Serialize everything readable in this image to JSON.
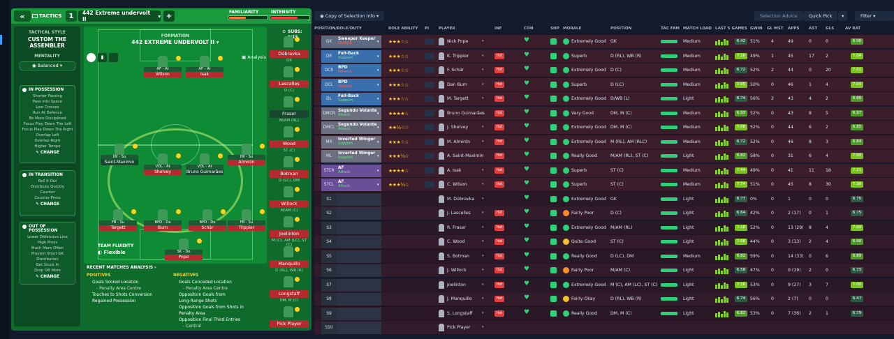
{
  "tactic_header": {
    "back_icon": "double-chevron-left-icon",
    "tactics_label": "TACTICS",
    "slot_number": "1",
    "tactic_name": "442 Extreme undervolt II",
    "add_icon": "plus-icon",
    "familiarity_label": "FAMILIARITY",
    "intensity_label": "INTENSITY",
    "familiarity_value": 0.45,
    "intensity_value": 0.7
  },
  "tactical_style": {
    "label": "TACTICAL STYLE",
    "name_line1": "CUSTOM THE",
    "name_line2": "ASSEMBLER",
    "mentality_label": "MENTALITY",
    "mentality_value": "Balanced",
    "in_possession": {
      "title": "IN POSSESSION",
      "items": [
        "Shorter Passing",
        "Pass Into Space",
        "Low Crosses",
        "Run At Defence",
        "Be More Disciplined",
        "Focus Play Down The Left",
        "Focus Play Down The Right",
        "Overlap Left",
        "Overlap Right",
        "Higher Tempo"
      ],
      "change": "CHANGE"
    },
    "in_transition": {
      "title": "IN TRANSITION",
      "items": [
        "Roll It Out",
        "Distribute Quickly",
        "Counter",
        "Counter-Press"
      ],
      "change": "CHANGE"
    },
    "out_of_possession": {
      "title": "OUT OF POSSESSION",
      "items": [
        "Lower Defensive Line",
        "High Press",
        "Much More Often",
        "Prevent Short GK",
        "Distribution",
        "Get Stuck In",
        "Drop Off More"
      ],
      "change": "CHANGE"
    }
  },
  "formation": {
    "label": "FORMATION",
    "name": "442 EXTREME UNDERVOLT II",
    "analysis_button": "Analysis",
    "players": [
      {
        "id": "af-left",
        "role": "AF - At",
        "name": "Wilson"
      },
      {
        "id": "af-right",
        "role": "AF - At",
        "name": "Isak"
      },
      {
        "id": "iw-left",
        "role": "IW - Su",
        "name": "Saint-Maximin"
      },
      {
        "id": "vol-left",
        "role": "VOL - At",
        "name": "Shelvey"
      },
      {
        "id": "vol-right",
        "role": "VOL - At",
        "name": "Bruno Guimarães"
      },
      {
        "id": "iw-right",
        "role": "IW - Su",
        "name": "Almirón"
      },
      {
        "id": "fb-left",
        "role": "FB - Su",
        "name": "Targett"
      },
      {
        "id": "bpd-left",
        "role": "BPD - De",
        "name": "Burn"
      },
      {
        "id": "bpd-right",
        "role": "BPD - De",
        "name": "Schär"
      },
      {
        "id": "fb-right",
        "role": "FB - Su",
        "name": "Trippier"
      },
      {
        "id": "sk",
        "role": "SK - De",
        "name": "Pope"
      }
    ],
    "team_fluidity_label": "TEAM FLUIDITY",
    "team_fluidity_value": "Flexible"
  },
  "subs": {
    "label": "SUBS:",
    "count": "9/15",
    "items": [
      {
        "name": "Dúbravka",
        "pos": "GK"
      },
      {
        "name": "Lascelles",
        "pos": "D (C)"
      },
      {
        "name": "Fraser",
        "pos": "M/AM (RL)"
      },
      {
        "name": "Wood",
        "pos": "ST (C)"
      },
      {
        "name": "Botman",
        "pos": "D (LC), DM"
      },
      {
        "name": "Willock",
        "pos": "M/AM (C)"
      },
      {
        "name": "Joelinton",
        "pos": "M (C), AM (LC), ST (C)"
      },
      {
        "name": "Manquillo",
        "pos": "D (RL), WB (R)"
      },
      {
        "name": "Longstaff",
        "pos": "DM, M (C)"
      },
      {
        "name": "Pick Player",
        "pos": ""
      }
    ]
  },
  "analysis": {
    "title": "RECENT MATCHES ANALYSIS",
    "positives_label": "POSITIVES",
    "positives": [
      "Goals Scored Location",
      "- Penalty Area Centre",
      "Touches to Shots Conversion",
      "Regained Possession"
    ],
    "negatives_label": "NEGATIVES",
    "negatives": [
      "Goals Conceded Location",
      "- Penalty Area Centre",
      "Opposition Goals from",
      "Long-Range Shots",
      "Opposition Goals from Shots in",
      "Penalty Area",
      "Opposition Final Third Entries",
      "- Central"
    ]
  },
  "toolbar": {
    "copy_selection": "Copy of Selection Info",
    "selection_advice": "Selection Advice",
    "quick_pick": "Quick Pick",
    "filter": "Filter"
  },
  "columns": [
    "POSITION/ROLE/DUTY",
    "ROLE ABILITY",
    "PI",
    "PLAYER",
    "INF",
    "CON",
    "SHP",
    "MORALE",
    "POSITION",
    "TAC FAM",
    "MATCH LOAD",
    "LAST 5 GAMES",
    "GWIN",
    "GL MST",
    "APPS",
    "AST",
    "GLS",
    "AV RAT"
  ],
  "rows": [
    {
      "pos": "GK",
      "role": "Sweeper Keeper",
      "duty": "Defend",
      "stars": "★★★☆☆",
      "player": "Nick Pope",
      "inf": "",
      "morale": "Extremely Good",
      "position": "GK",
      "load": "Medium",
      "rating": "6.42",
      "gwin": "51%",
      "glmst": "4",
      "apps": "49",
      "ast": "0",
      "gls": "0",
      "avrat": "6.90"
    },
    {
      "pos": "DR",
      "role": "Full-Back",
      "duty": "Support",
      "stars": "★★★☆☆",
      "player": "K. Trippier",
      "inf": "Hot",
      "morale": "Superb",
      "position": "D (RL), WB (R)",
      "load": "Medium",
      "rating": "7.10",
      "gwin": "49%",
      "glmst": "1",
      "apps": "45",
      "ast": "17",
      "gls": "2",
      "avrat": "7.04"
    },
    {
      "pos": "DCR",
      "role": "BPD",
      "duty": "Defend",
      "stars": "★★★☆☆",
      "player": "F. Schär",
      "inf": "Hot",
      "morale": "Extremely Good",
      "position": "D (C)",
      "load": "Medium",
      "rating": "6.72",
      "gwin": "52%",
      "glmst": "2",
      "apps": "44",
      "ast": "0",
      "gls": "20",
      "avrat": "7.01"
    },
    {
      "pos": "DCL",
      "role": "BPD",
      "duty": "Defend",
      "stars": "★★★☆☆",
      "player": "Dan Burn",
      "inf": "Hot",
      "morale": "Superb",
      "position": "D (LC)",
      "load": "Medium",
      "rating": "7.05",
      "gwin": "50%",
      "glmst": "0",
      "apps": "46",
      "ast": "1",
      "gls": "4",
      "avrat": "7.03"
    },
    {
      "pos": "DL",
      "role": "Full-Back",
      "duty": "Support",
      "stars": "★★★☆☆",
      "player": "M. Targett",
      "inf": "Hot",
      "morale": "Extremely Good",
      "position": "D/WB (L)",
      "load": "Light",
      "rating": "6.74",
      "gwin": "56%",
      "glmst": "2",
      "apps": "43",
      "ast": "4",
      "gls": "2",
      "avrat": "6.86"
    },
    {
      "pos": "DMCR",
      "role": "Segundo Volante",
      "duty": "Attack",
      "stars": "★★★★☆",
      "player": "Bruno Guimarães",
      "inf": "Hot",
      "morale": "Very Good",
      "position": "DM, M (C)",
      "load": "Medium",
      "rating": "6.93",
      "gwin": "52%",
      "glmst": "0",
      "apps": "43",
      "ast": "8",
      "gls": "5",
      "avrat": "6.97"
    },
    {
      "pos": "DMCL",
      "role": "Segundo Volante",
      "duty": "Attack",
      "stars": "★★½☆☆",
      "player": "J. Shelvey",
      "inf": "Hot",
      "morale": "Extremely Good",
      "position": "DM, M (C)",
      "load": "Medium",
      "rating": "7.08",
      "gwin": "52%",
      "glmst": "0",
      "apps": "44",
      "ast": "6",
      "gls": "2",
      "avrat": "6.85"
    },
    {
      "pos": "MR",
      "role": "Inverted Winger",
      "duty": "Support",
      "stars": "★★★☆☆",
      "player": "M. Almirón",
      "inf": "Hot",
      "morale": "Extremely Good",
      "position": "M (RL), AM (RLC)",
      "load": "Medium",
      "rating": "6.72",
      "gwin": "52%",
      "glmst": "0",
      "apps": "46",
      "ast": "8",
      "gls": "3",
      "avrat": "6.84"
    },
    {
      "pos": "ML",
      "role": "Inverted Winger",
      "duty": "Support",
      "stars": "★★★½☆",
      "player": "A. Saint-Maximin",
      "inf": "Hot",
      "morale": "Really Good",
      "position": "M/AM (RL), ST (C)",
      "load": "Light",
      "rating": "6.82",
      "gwin": "58%",
      "glmst": "0",
      "apps": "31",
      "ast": "6",
      "gls": "4",
      "avrat": "7.00"
    },
    {
      "pos": "STCR",
      "role": "AF",
      "duty": "Attack",
      "stars": "★★★★☆",
      "player": "A. Isak",
      "inf": "Hot",
      "morale": "Superb",
      "position": "ST (C)",
      "load": "Medium",
      "rating": "7.44",
      "gwin": "49%",
      "glmst": "0",
      "apps": "41",
      "ast": "11",
      "gls": "18",
      "avrat": "7.21"
    },
    {
      "pos": "STCL",
      "role": "AF",
      "duty": "Attack",
      "stars": "★★★½☆",
      "player": "C. Wilson",
      "inf": "Hot",
      "morale": "Superb",
      "position": "ST (C)",
      "load": "Medium",
      "rating": "7.74",
      "gwin": "51%",
      "glmst": "0",
      "apps": "45",
      "ast": "8",
      "gls": "30",
      "avrat": "7.36"
    },
    {
      "pos": "S1",
      "role": "",
      "duty": "",
      "stars": "",
      "player": "M. Dúbravka",
      "inf": "",
      "morale": "Extremely Good",
      "position": "GK",
      "load": "Light",
      "rating": "6.77",
      "gwin": "0%",
      "glmst": "0",
      "apps": "1",
      "ast": "0",
      "gls": "0",
      "avrat": "6.70"
    },
    {
      "pos": "S2",
      "role": "",
      "duty": "",
      "stars": "",
      "player": "J. Lascelles",
      "inf": "Hot",
      "morale": "Fairly Poor",
      "position": "D (C)",
      "load": "Light",
      "rating": "6.64",
      "gwin": "42%",
      "glmst": "0",
      "apps": "2 (17)",
      "ast": "0",
      "gls": "1",
      "avrat": "6.75"
    },
    {
      "pos": "S3",
      "role": "",
      "duty": "",
      "stars": "",
      "player": "R. Fraser",
      "inf": "Hot",
      "morale": "Extremely Good",
      "position": "M/AM (RL)",
      "load": "Light",
      "rating": "7.18",
      "gwin": "52%",
      "glmst": "0",
      "apps": "13 (29)",
      "ast": "8",
      "gls": "4",
      "avrat": "7.00"
    },
    {
      "pos": "S4",
      "role": "",
      "duty": "",
      "stars": "",
      "player": "C. Wood",
      "inf": "Hot",
      "morale": "Quite Good",
      "position": "ST (C)",
      "load": "Light",
      "rating": "7.08",
      "gwin": "44%",
      "glmst": "0",
      "apps": "3 (13)",
      "ast": "2",
      "gls": "4",
      "avrat": "6.90"
    },
    {
      "pos": "S5",
      "role": "",
      "duty": "",
      "stars": "",
      "player": "S. Botman",
      "inf": "Hot",
      "morale": "Really Good",
      "position": "D (LC), DM",
      "load": "Medium",
      "rating": "6.82",
      "gwin": "59%",
      "glmst": "0",
      "apps": "14 (33)",
      "ast": "0",
      "gls": "6",
      "avrat": "6.89"
    },
    {
      "pos": "S6",
      "role": "",
      "duty": "",
      "stars": "",
      "player": "J. Willock",
      "inf": "Hot",
      "morale": "Fairly Poor",
      "position": "M/AM (C)",
      "load": "Light",
      "rating": "6.58",
      "gwin": "47%",
      "glmst": "0",
      "apps": "0 (19)",
      "ast": "2",
      "gls": "0",
      "avrat": "6.73"
    },
    {
      "pos": "S7",
      "role": "",
      "duty": "",
      "stars": "",
      "player": "Joelinton",
      "inf": "Hot",
      "morale": "Extremely Good",
      "position": "M (C), AM (LC), ST (C)",
      "load": "Light",
      "rating": "7.16",
      "gwin": "53%",
      "glmst": "0",
      "apps": "9 (27)",
      "ast": "3",
      "gls": "7",
      "avrat": "7.00"
    },
    {
      "pos": "S8",
      "role": "",
      "duty": "",
      "stars": "",
      "player": "J. Manquillo",
      "inf": "Hot",
      "morale": "Fairly Okay",
      "position": "D (RL), WB (R)",
      "load": "Light",
      "rating": "6.74",
      "gwin": "56%",
      "glmst": "0",
      "apps": "2 (7)",
      "ast": "0",
      "gls": "0",
      "avrat": "6.47"
    },
    {
      "pos": "S9",
      "role": "",
      "duty": "",
      "stars": "",
      "player": "S. Longstaff",
      "inf": "Hot",
      "morale": "Really Good",
      "position": "DM, M (C)",
      "load": "Light",
      "rating": "6.82",
      "gwin": "53%",
      "glmst": "0",
      "apps": "7 (36)",
      "ast": "2",
      "gls": "1",
      "avrat": "6.79"
    },
    {
      "pos": "S10",
      "role": "",
      "duty": "",
      "stars": "",
      "player": "Pick Player",
      "inf": "",
      "morale": "",
      "position": "",
      "load": "",
      "rating": "",
      "gwin": "",
      "glmst": "",
      "apps": "",
      "ast": "",
      "gls": "",
      "avrat": ""
    }
  ],
  "colors": {
    "xi_row_bg": "#3b1d2c",
    "gk_bg": "#5e6a82",
    "def_bg": "#3a6fae",
    "mid_bg": "#6b6f80",
    "att_bg": "#6a4e98",
    "positive": "#2ed079",
    "negative": "#e43d3d"
  }
}
